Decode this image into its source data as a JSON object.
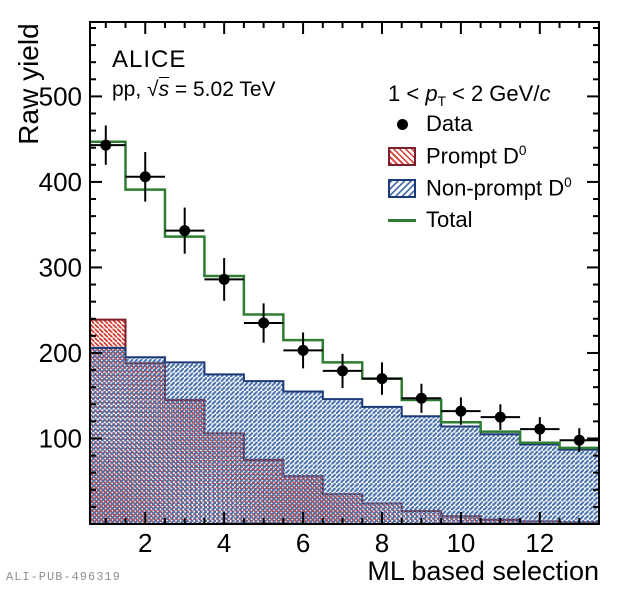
{
  "figure": {
    "experiment": "ALICE",
    "collision_prefix": "pp, ",
    "sqrt_symbol": "√",
    "sqrt_arg": "s",
    "energy_suffix": " = 5.02 TeV",
    "watermark": "ALI-PUB-496319"
  },
  "legend": {
    "annotation": {
      "pre": "1 < ",
      "p": "p",
      "sub": "T",
      "mid": " < 2 GeV/",
      "c": "c"
    },
    "entries": [
      {
        "label": "Data",
        "marker": "black-dot"
      },
      {
        "label_main": "Prompt D",
        "label_sup": "0",
        "marker": "red-hatch-box"
      },
      {
        "label_main": "Non-prompt D",
        "label_sup": "0",
        "marker": "blue-hatch-box"
      },
      {
        "label": "Total",
        "marker": "green-line"
      }
    ]
  },
  "chart_data": {
    "type": "bar",
    "subtype": "overlaid-step-histograms-with-data-points",
    "title": "ALICE",
    "subtitle": "pp, sqrt(s) = 5.02 TeV",
    "annotation": "1 < pT < 2 GeV/c",
    "xlabel": "ML based selection",
    "ylabel": "Raw yield",
    "xlim": [
      0.6,
      13.5
    ],
    "ylim": [
      0,
      587
    ],
    "x_major_ticks": [
      2,
      4,
      6,
      8,
      10,
      12
    ],
    "x_minor_step": 0.5,
    "y_major_ticks": [
      100,
      200,
      300,
      400,
      500
    ],
    "y_minor_step": 20,
    "grid": false,
    "legend_position": "top-right",
    "bin_centers": [
      1,
      2,
      3,
      4,
      5,
      6,
      7,
      8,
      9,
      10,
      11,
      12,
      13
    ],
    "bin_width": 1,
    "series": [
      {
        "name": "Prompt D0",
        "type": "hist",
        "hatch": "\\",
        "values": [
          239,
          188,
          145,
          106,
          75,
          56,
          35,
          24,
          15,
          9,
          5,
          3,
          2
        ],
        "line_color": "#7a1f2b",
        "hatch_color": "#d6382c"
      },
      {
        "name": "Non-prompt D0",
        "type": "hist",
        "hatch": "/",
        "values": [
          206,
          195,
          189,
          175,
          167,
          155,
          146,
          137,
          126,
          114,
          105,
          93,
          87
        ],
        "line_color": "#1b3a77",
        "hatch_color": "#4a72ab"
      },
      {
        "name": "Total",
        "type": "step-line",
        "values": [
          447,
          391,
          336,
          290,
          245,
          215,
          189,
          170,
          145,
          119,
          108,
          95,
          89
        ],
        "color": "#2e7d32"
      },
      {
        "name": "Data",
        "type": "points",
        "values": [
          443,
          406,
          343,
          286,
          235,
          203,
          179,
          170,
          147,
          132,
          125,
          111,
          98
        ],
        "yerr": [
          23,
          29,
          27,
          25,
          23,
          21,
          20,
          19,
          17,
          16,
          15,
          14,
          14
        ],
        "xerr": 0.5,
        "color": "#000000"
      }
    ]
  }
}
